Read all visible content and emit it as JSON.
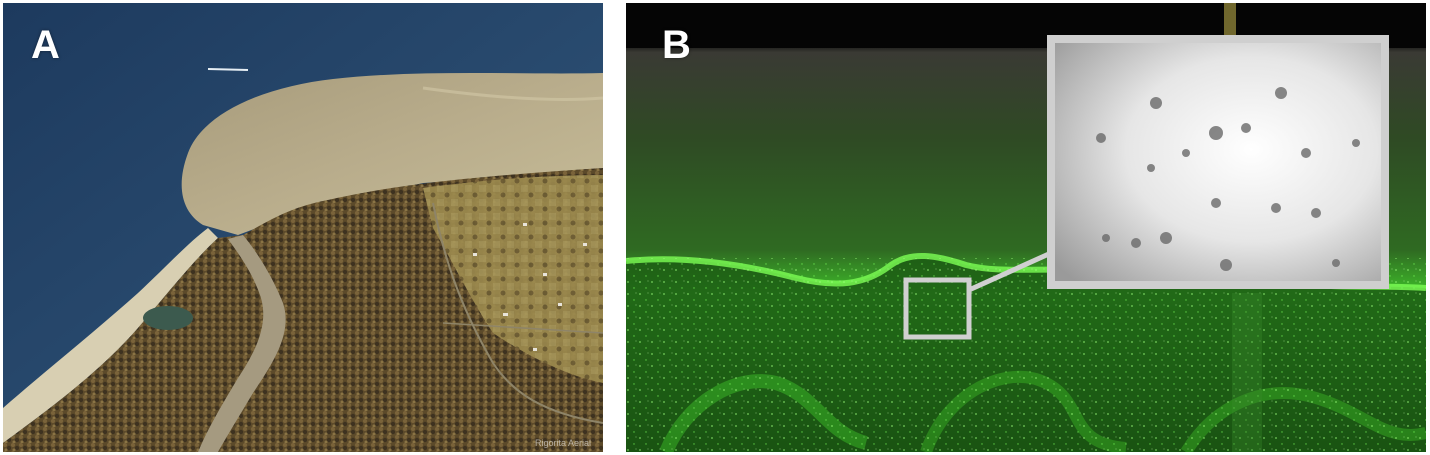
{
  "panels": [
    {
      "label": "A",
      "watermark": "Rigorita Aerial"
    },
    {
      "label": "B"
    }
  ],
  "colors": {
    "background": "#ffffff",
    "sea": "#26476a",
    "sediment_plume": "#b5aa88",
    "forest": "#5a4a2c",
    "fluorescent_green": "#3fd42a",
    "inset_frame": "#cfcfcf"
  }
}
